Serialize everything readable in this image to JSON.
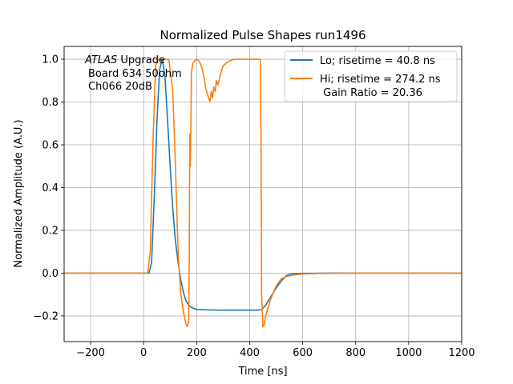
{
  "chart_data": {
    "type": "line",
    "title": "Normalized Pulse Shapes run1496",
    "xlabel": "Time [ns]",
    "ylabel": "Normalized Amplitude (A.U.)",
    "xlim": [
      -300,
      1200
    ],
    "ylim": [
      -0.32,
      1.06
    ],
    "xticks": [
      -200,
      0,
      200,
      400,
      600,
      800,
      1000,
      1200
    ],
    "xtick_labels": [
      "−200",
      "0",
      "200",
      "400",
      "600",
      "800",
      "1000",
      "1200"
    ],
    "yticks": [
      -0.2,
      0.0,
      0.2,
      0.4,
      0.6,
      0.8,
      1.0
    ],
    "ytick_labels": [
      "−0.2",
      "0.0",
      "0.2",
      "0.4",
      "0.6",
      "0.8",
      "1.0"
    ],
    "grid": true,
    "legend_position": "top-right",
    "annotation": {
      "italic": "ATLAS",
      "line1_rest": " Upgrade",
      "line2": "Board 634 50ohm",
      "line3": "Ch066 20dB"
    },
    "series": [
      {
        "name": "Lo; risetime = 40.8 ns",
        "legend_lines": [
          "Lo; risetime = 40.8 ns"
        ],
        "color": "#1f77b4",
        "x": [
          -300,
          20,
          30,
          40,
          50,
          60,
          70,
          80,
          90,
          100,
          110,
          120,
          130,
          140,
          150,
          160,
          170,
          180,
          200,
          250,
          300,
          350,
          400,
          430,
          445,
          460,
          480,
          500,
          520,
          540,
          560,
          580,
          600,
          700,
          800,
          1000,
          1200
        ],
        "y": [
          0.0,
          0.0,
          0.05,
          0.35,
          0.7,
          0.95,
          1.0,
          0.93,
          0.72,
          0.5,
          0.3,
          0.15,
          0.05,
          -0.03,
          -0.09,
          -0.13,
          -0.15,
          -0.16,
          -0.17,
          -0.172,
          -0.173,
          -0.173,
          -0.173,
          -0.173,
          -0.17,
          -0.15,
          -0.11,
          -0.07,
          -0.035,
          -0.01,
          -0.003,
          -0.002,
          -0.001,
          0.0,
          0.0,
          0.0,
          0.0
        ]
      },
      {
        "name": "Hi; risetime = 274.2 ns",
        "legend_lines": [
          "Hi; risetime = 274.2 ns",
          " Gain Ratio = 20.36"
        ],
        "color": "#ff7f0e",
        "x": [
          -300,
          15,
          25,
          35,
          45,
          55,
          65,
          95,
          110,
          120,
          130,
          140,
          150,
          160,
          165,
          170,
          172,
          174,
          176,
          178,
          180,
          185,
          190,
          200,
          210,
          220,
          225,
          230,
          235,
          240,
          245,
          250,
          255,
          260,
          265,
          270,
          275,
          280,
          290,
          300,
          320,
          340,
          360,
          380,
          400,
          420,
          440,
          443,
          445,
          450,
          455,
          460,
          470,
          480,
          500,
          520,
          540,
          560,
          580,
          600,
          650,
          700,
          800,
          1000,
          1200
        ],
        "y": [
          0.0,
          0.0,
          0.1,
          0.6,
          0.97,
          1.0,
          1.0,
          1.0,
          0.85,
          0.5,
          0.1,
          -0.1,
          -0.18,
          -0.24,
          -0.25,
          -0.23,
          0.05,
          0.65,
          0.5,
          0.65,
          0.93,
          0.98,
          0.99,
          1.0,
          0.99,
          0.96,
          0.93,
          0.9,
          0.86,
          0.84,
          0.82,
          0.8,
          0.85,
          0.82,
          0.87,
          0.85,
          0.9,
          0.88,
          0.93,
          0.97,
          0.99,
          1.0,
          1.0,
          1.0,
          1.0,
          1.0,
          1.0,
          0.6,
          -0.1,
          -0.25,
          -0.24,
          -0.2,
          -0.16,
          -0.12,
          -0.06,
          -0.025,
          -0.015,
          -0.01,
          -0.006,
          -0.004,
          -0.002,
          -0.001,
          0.0,
          0.0,
          0.0
        ]
      }
    ]
  }
}
